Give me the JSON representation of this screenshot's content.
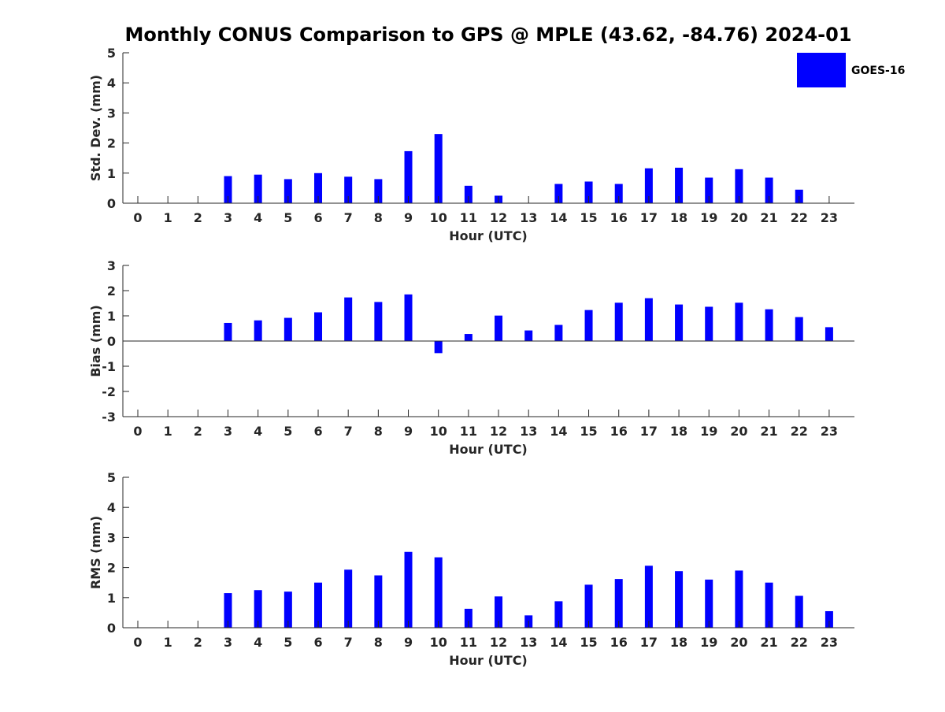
{
  "title": "Monthly CONUS Comparison to GPS @ MPLE (43.62, -84.76) 2024-01",
  "legend": {
    "label": "GOES-16",
    "color": "#0000ff"
  },
  "colors": {
    "bar": "#0000ff",
    "axis": "#262626",
    "text": "#262626"
  },
  "chart_data": [
    {
      "type": "bar",
      "title": "",
      "xlabel": "Hour (UTC)",
      "ylabel": "Std. Dev. (mm)",
      "ylim": [
        0,
        5
      ],
      "yticks": [
        0,
        1,
        2,
        3,
        4,
        5
      ],
      "categories": [
        "0",
        "1",
        "2",
        "3",
        "4",
        "5",
        "6",
        "7",
        "8",
        "9",
        "10",
        "11",
        "12",
        "13",
        "14",
        "15",
        "16",
        "17",
        "18",
        "19",
        "20",
        "21",
        "22",
        "23"
      ],
      "series": [
        {
          "name": "GOES-16",
          "values": [
            0,
            0,
            0,
            0.9,
            0.95,
            0.8,
            1.0,
            0.88,
            0.8,
            1.73,
            2.3,
            0.58,
            0.25,
            0,
            0.64,
            0.72,
            0.64,
            1.16,
            1.18,
            0.85,
            1.13,
            0.85,
            0.45,
            0
          ]
        }
      ],
      "legend": "top-right",
      "grid": false
    },
    {
      "type": "bar",
      "title": "",
      "xlabel": "Hour (UTC)",
      "ylabel": "Bias (mm)",
      "ylim": [
        -3,
        3
      ],
      "yticks": [
        -3,
        -2,
        -1,
        0,
        1,
        2,
        3
      ],
      "categories": [
        "0",
        "1",
        "2",
        "3",
        "4",
        "5",
        "6",
        "7",
        "8",
        "9",
        "10",
        "11",
        "12",
        "13",
        "14",
        "15",
        "16",
        "17",
        "18",
        "19",
        "20",
        "21",
        "22",
        "23"
      ],
      "series": [
        {
          "name": "GOES-16",
          "values": [
            0,
            0,
            0,
            0.72,
            0.82,
            0.92,
            1.14,
            1.73,
            1.55,
            1.85,
            -0.48,
            0.28,
            1.01,
            0.42,
            0.64,
            1.23,
            1.52,
            1.7,
            1.45,
            1.36,
            1.52,
            1.26,
            0.95,
            0.55
          ]
        }
      ],
      "grid": false
    },
    {
      "type": "bar",
      "title": "",
      "xlabel": "Hour (UTC)",
      "ylabel": "RMS (mm)",
      "ylim": [
        0,
        5
      ],
      "yticks": [
        0,
        1,
        2,
        3,
        4,
        5
      ],
      "categories": [
        "0",
        "1",
        "2",
        "3",
        "4",
        "5",
        "6",
        "7",
        "8",
        "9",
        "10",
        "11",
        "12",
        "13",
        "14",
        "15",
        "16",
        "17",
        "18",
        "19",
        "20",
        "21",
        "22",
        "23"
      ],
      "series": [
        {
          "name": "GOES-16",
          "values": [
            0,
            0,
            0,
            1.15,
            1.25,
            1.2,
            1.5,
            1.93,
            1.74,
            2.52,
            2.34,
            0.63,
            1.04,
            0.41,
            0.88,
            1.43,
            1.62,
            2.06,
            1.88,
            1.6,
            1.9,
            1.5,
            1.06,
            0.55
          ]
        }
      ],
      "grid": false
    }
  ]
}
